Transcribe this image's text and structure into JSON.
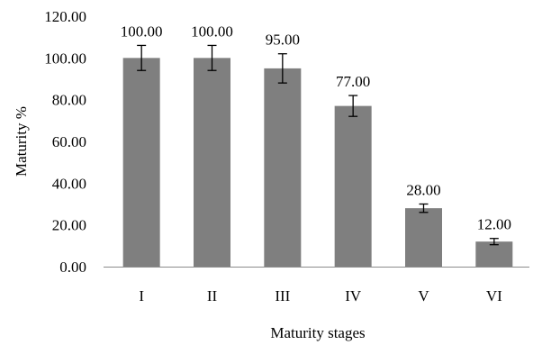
{
  "chart_data": {
    "type": "bar",
    "title": "",
    "xlabel": "Maturity stages",
    "ylabel": "Maturity %",
    "categories": [
      "I",
      "II",
      "III",
      "IV",
      "V",
      "VI"
    ],
    "values": [
      100.0,
      100.0,
      95.0,
      77.0,
      28.0,
      12.0
    ],
    "value_labels": [
      "100.00",
      "100.00",
      "95.00",
      "77.00",
      "28.00",
      "12.00"
    ],
    "error": [
      6,
      6,
      7,
      5,
      2,
      1.5
    ],
    "ylim": [
      0,
      120
    ],
    "yticks": [
      0,
      20,
      40,
      60,
      80,
      100,
      120
    ],
    "ytick_labels": [
      "0.00",
      "20.00",
      "40.00",
      "60.00",
      "80.00",
      "100.00",
      "120.00"
    ],
    "grid": false,
    "legend": "none",
    "bar_color": "#7f7f7f",
    "errorbar_color": "#000000",
    "axis_color": "#8c8c8c"
  }
}
